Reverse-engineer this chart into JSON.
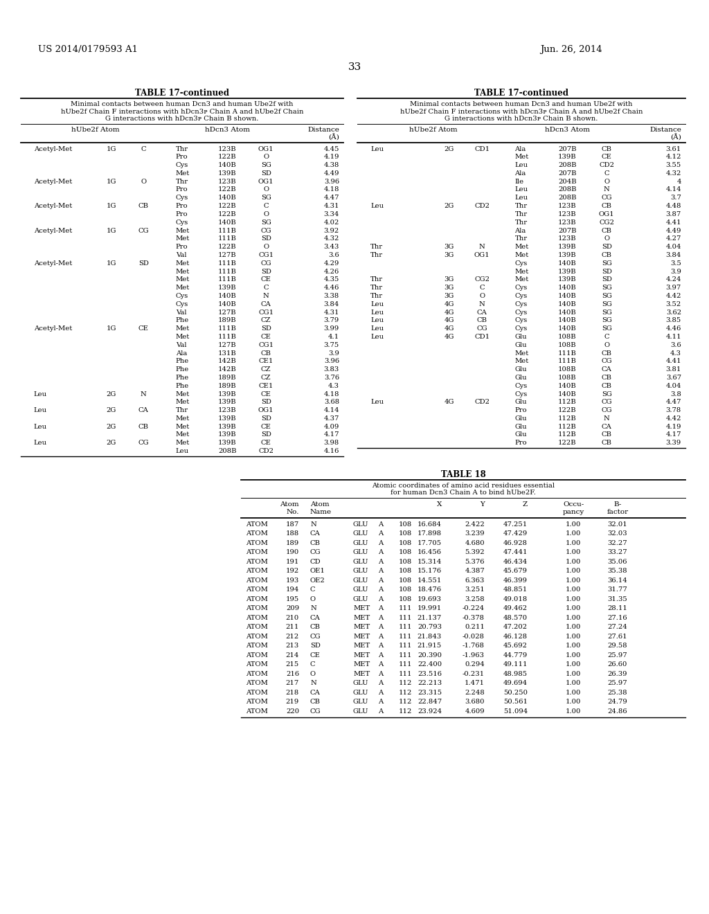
{
  "header_left": "US 2014/0179593 A1",
  "header_right": "Jun. 26, 2014",
  "page_number": "33",
  "table17_title": "TABLE 17-continued",
  "table17_caption_lines": [
    "Minimal contacts between human Dcn3 and human Ube2f with",
    "hUbe2f Chain F interactions with hDcn3ᴘ Chain A and hUbe2f Chain",
    "G interactions with hDcn3ᴘ Chain B shown."
  ],
  "table17_left_data": [
    [
      "Acetyl-Met",
      "1G",
      "C",
      "Thr",
      "123B",
      "OG1",
      "4.45"
    ],
    [
      "",
      "",
      "",
      "Pro",
      "122B",
      "O",
      "4.19"
    ],
    [
      "",
      "",
      "",
      "Cys",
      "140B",
      "SG",
      "4.38"
    ],
    [
      "",
      "",
      "",
      "Met",
      "139B",
      "SD",
      "4.49"
    ],
    [
      "Acetyl-Met",
      "1G",
      "O",
      "Thr",
      "123B",
      "OG1",
      "3.96"
    ],
    [
      "",
      "",
      "",
      "Pro",
      "122B",
      "O",
      "4.18"
    ],
    [
      "",
      "",
      "",
      "Cys",
      "140B",
      "SG",
      "4.47"
    ],
    [
      "Acetyl-Met",
      "1G",
      "CB",
      "Pro",
      "122B",
      "C",
      "4.31"
    ],
    [
      "",
      "",
      "",
      "Pro",
      "122B",
      "O",
      "3.34"
    ],
    [
      "",
      "",
      "",
      "Cys",
      "140B",
      "SG",
      "4.02"
    ],
    [
      "Acetyl-Met",
      "1G",
      "CG",
      "Met",
      "111B",
      "CG",
      "3.92"
    ],
    [
      "",
      "",
      "",
      "Met",
      "111B",
      "SD",
      "4.32"
    ],
    [
      "",
      "",
      "",
      "Pro",
      "122B",
      "O",
      "3.43"
    ],
    [
      "",
      "",
      "",
      "Val",
      "127B",
      "CG1",
      "3.6"
    ],
    [
      "Acetyl-Met",
      "1G",
      "SD",
      "Met",
      "111B",
      "CG",
      "4.29"
    ],
    [
      "",
      "",
      "",
      "Met",
      "111B",
      "SD",
      "4.26"
    ],
    [
      "",
      "",
      "",
      "Met",
      "111B",
      "CE",
      "4.35"
    ],
    [
      "",
      "",
      "",
      "Met",
      "139B",
      "C",
      "4.46"
    ],
    [
      "",
      "",
      "",
      "Cys",
      "140B",
      "N",
      "3.38"
    ],
    [
      "",
      "",
      "",
      "Cys",
      "140B",
      "CA",
      "3.84"
    ],
    [
      "",
      "",
      "",
      "Val",
      "127B",
      "CG1",
      "4.31"
    ],
    [
      "",
      "",
      "",
      "Phe",
      "189B",
      "CZ",
      "3.79"
    ],
    [
      "Acetyl-Met",
      "1G",
      "CE",
      "Met",
      "111B",
      "SD",
      "3.99"
    ],
    [
      "",
      "",
      "",
      "Met",
      "111B",
      "CE",
      "4.1"
    ],
    [
      "",
      "",
      "",
      "Val",
      "127B",
      "CG1",
      "3.75"
    ],
    [
      "",
      "",
      "",
      "Ala",
      "131B",
      "CB",
      "3.9"
    ],
    [
      "",
      "",
      "",
      "Phe",
      "142B",
      "CE1",
      "3.96"
    ],
    [
      "",
      "",
      "",
      "Phe",
      "142B",
      "CZ",
      "3.83"
    ],
    [
      "",
      "",
      "",
      "Phe",
      "189B",
      "CZ",
      "3.76"
    ],
    [
      "",
      "",
      "",
      "Phe",
      "189B",
      "CE1",
      "4.3"
    ],
    [
      "Leu",
      "2G",
      "N",
      "Met",
      "139B",
      "CE",
      "4.18"
    ],
    [
      "",
      "",
      "",
      "Met",
      "139B",
      "SD",
      "3.68"
    ],
    [
      "Leu",
      "2G",
      "CA",
      "Thr",
      "123B",
      "OG1",
      "4.14"
    ],
    [
      "",
      "",
      "",
      "Met",
      "139B",
      "SD",
      "4.37"
    ],
    [
      "Leu",
      "2G",
      "CB",
      "Met",
      "139B",
      "CE",
      "4.09"
    ],
    [
      "",
      "",
      "",
      "Met",
      "139B",
      "SD",
      "4.17"
    ],
    [
      "Leu",
      "2G",
      "CG",
      "Met",
      "139B",
      "CE",
      "3.98"
    ],
    [
      "",
      "",
      "",
      "Leu",
      "208B",
      "CD2",
      "4.16"
    ]
  ],
  "table17_right_data": [
    [
      "Leu",
      "2G",
      "CD1",
      "Ala",
      "207B",
      "CB",
      "3.61"
    ],
    [
      "",
      "",
      "",
      "Met",
      "139B",
      "CE",
      "4.12"
    ],
    [
      "",
      "",
      "",
      "Leu",
      "208B",
      "CD2",
      "3.55"
    ],
    [
      "",
      "",
      "",
      "Ala",
      "207B",
      "C",
      "4.32"
    ],
    [
      "",
      "",
      "",
      "Ile",
      "204B",
      "O",
      "4"
    ],
    [
      "",
      "",
      "",
      "Leu",
      "208B",
      "N",
      "4.14"
    ],
    [
      "",
      "",
      "",
      "Leu",
      "208B",
      "CG",
      "3.7"
    ],
    [
      "Leu",
      "2G",
      "CD2",
      "Thr",
      "123B",
      "CB",
      "4.48"
    ],
    [
      "",
      "",
      "",
      "Thr",
      "123B",
      "OG1",
      "3.87"
    ],
    [
      "",
      "",
      "",
      "Thr",
      "123B",
      "CG2",
      "4.41"
    ],
    [
      "",
      "",
      "",
      "Ala",
      "207B",
      "CB",
      "4.49"
    ],
    [
      "",
      "",
      "",
      "Thr",
      "123B",
      "O",
      "4.27"
    ],
    [
      "Thr",
      "3G",
      "N",
      "Met",
      "139B",
      "SD",
      "4.04"
    ],
    [
      "Thr",
      "3G",
      "OG1",
      "Met",
      "139B",
      "CB",
      "3.84"
    ],
    [
      "",
      "",
      "",
      "Cys",
      "140B",
      "SG",
      "3.5"
    ],
    [
      "",
      "",
      "",
      "Met",
      "139B",
      "SD",
      "3.9"
    ],
    [
      "Thr",
      "3G",
      "CG2",
      "Met",
      "139B",
      "SD",
      "4.24"
    ],
    [
      "Thr",
      "3G",
      "C",
      "Cys",
      "140B",
      "SG",
      "3.97"
    ],
    [
      "Thr",
      "3G",
      "O",
      "Cys",
      "140B",
      "SG",
      "4.42"
    ],
    [
      "Leu",
      "4G",
      "N",
      "Cys",
      "140B",
      "SG",
      "3.52"
    ],
    [
      "Leu",
      "4G",
      "CA",
      "Cys",
      "140B",
      "SG",
      "3.62"
    ],
    [
      "Leu",
      "4G",
      "CB",
      "Cys",
      "140B",
      "SG",
      "3.85"
    ],
    [
      "Leu",
      "4G",
      "CG",
      "Cys",
      "140B",
      "SG",
      "4.46"
    ],
    [
      "Leu",
      "4G",
      "CD1",
      "Glu",
      "108B",
      "C",
      "4.11"
    ],
    [
      "",
      "",
      "",
      "Glu",
      "108B",
      "O",
      "3.6"
    ],
    [
      "",
      "",
      "",
      "Met",
      "111B",
      "CB",
      "4.3"
    ],
    [
      "",
      "",
      "",
      "Met",
      "111B",
      "CG",
      "4.41"
    ],
    [
      "",
      "",
      "",
      "Glu",
      "108B",
      "CA",
      "3.81"
    ],
    [
      "",
      "",
      "",
      "Glu",
      "108B",
      "CB",
      "3.67"
    ],
    [
      "",
      "",
      "",
      "Cys",
      "140B",
      "CB",
      "4.04"
    ],
    [
      "",
      "",
      "",
      "Cys",
      "140B",
      "SG",
      "3.8"
    ],
    [
      "Leu",
      "4G",
      "CD2",
      "Glu",
      "112B",
      "CG",
      "4.47"
    ],
    [
      "",
      "",
      "",
      "Pro",
      "122B",
      "CG",
      "3.78"
    ],
    [
      "",
      "",
      "",
      "Glu",
      "112B",
      "N",
      "4.42"
    ],
    [
      "",
      "",
      "",
      "Glu",
      "112B",
      "CA",
      "4.19"
    ],
    [
      "",
      "",
      "",
      "Glu",
      "112B",
      "CB",
      "4.17"
    ],
    [
      "",
      "",
      "",
      "Pro",
      "122B",
      "CB",
      "3.39"
    ]
  ],
  "table18_title": "TABLE 18",
  "table18_caption_lines": [
    "Atomic coordinates of amino acid residues essential",
    "for human Dcn3 Chain A to bind hUbe2F."
  ],
  "table18_data": [
    [
      "ATOM",
      "187",
      "N",
      "GLU",
      "A",
      "108",
      "16.684",
      "2.422",
      "47.251",
      "1.00",
      "32.01"
    ],
    [
      "ATOM",
      "188",
      "CA",
      "GLU",
      "A",
      "108",
      "17.898",
      "3.239",
      "47.429",
      "1.00",
      "32.03"
    ],
    [
      "ATOM",
      "189",
      "CB",
      "GLU",
      "A",
      "108",
      "17.705",
      "4.680",
      "46.928",
      "1.00",
      "32.27"
    ],
    [
      "ATOM",
      "190",
      "CG",
      "GLU",
      "A",
      "108",
      "16.456",
      "5.392",
      "47.441",
      "1.00",
      "33.27"
    ],
    [
      "ATOM",
      "191",
      "CD",
      "GLU",
      "A",
      "108",
      "15.314",
      "5.376",
      "46.434",
      "1.00",
      "35.06"
    ],
    [
      "ATOM",
      "192",
      "OE1",
      "GLU",
      "A",
      "108",
      "15.176",
      "4.387",
      "45.679",
      "1.00",
      "35.38"
    ],
    [
      "ATOM",
      "193",
      "OE2",
      "GLU",
      "A",
      "108",
      "14.551",
      "6.363",
      "46.399",
      "1.00",
      "36.14"
    ],
    [
      "ATOM",
      "194",
      "C",
      "GLU",
      "A",
      "108",
      "18.476",
      "3.251",
      "48.851",
      "1.00",
      "31.77"
    ],
    [
      "ATOM",
      "195",
      "O",
      "GLU",
      "A",
      "108",
      "19.693",
      "3.258",
      "49.018",
      "1.00",
      "31.35"
    ],
    [
      "ATOM",
      "209",
      "N",
      "MET",
      "A",
      "111",
      "19.991",
      "-0.224",
      "49.462",
      "1.00",
      "28.11"
    ],
    [
      "ATOM",
      "210",
      "CA",
      "MET",
      "A",
      "111",
      "21.137",
      "-0.378",
      "48.570",
      "1.00",
      "27.16"
    ],
    [
      "ATOM",
      "211",
      "CB",
      "MET",
      "A",
      "111",
      "20.793",
      "0.211",
      "47.202",
      "1.00",
      "27.24"
    ],
    [
      "ATOM",
      "212",
      "CG",
      "MET",
      "A",
      "111",
      "21.843",
      "-0.028",
      "46.128",
      "1.00",
      "27.61"
    ],
    [
      "ATOM",
      "213",
      "SD",
      "MET",
      "A",
      "111",
      "21.915",
      "-1.768",
      "45.692",
      "1.00",
      "29.58"
    ],
    [
      "ATOM",
      "214",
      "CE",
      "MET",
      "A",
      "111",
      "20.390",
      "-1.963",
      "44.779",
      "1.00",
      "25.97"
    ],
    [
      "ATOM",
      "215",
      "C",
      "MET",
      "A",
      "111",
      "22.400",
      "0.294",
      "49.111",
      "1.00",
      "26.60"
    ],
    [
      "ATOM",
      "216",
      "O",
      "MET",
      "A",
      "111",
      "23.516",
      "-0.231",
      "48.985",
      "1.00",
      "26.39"
    ],
    [
      "ATOM",
      "217",
      "N",
      "GLU",
      "A",
      "112",
      "22.213",
      "1.471",
      "49.694",
      "1.00",
      "25.97"
    ],
    [
      "ATOM",
      "218",
      "CA",
      "GLU",
      "A",
      "112",
      "23.315",
      "2.248",
      "50.250",
      "1.00",
      "25.38"
    ],
    [
      "ATOM",
      "219",
      "CB",
      "GLU",
      "A",
      "112",
      "22.847",
      "3.680",
      "50.561",
      "1.00",
      "24.79"
    ],
    [
      "ATOM",
      "220",
      "CG",
      "GLU",
      "A",
      "112",
      "23.924",
      "4.609",
      "51.094",
      "1.00",
      "24.86"
    ]
  ],
  "bg_color": "#ffffff",
  "text_color": "#000000"
}
